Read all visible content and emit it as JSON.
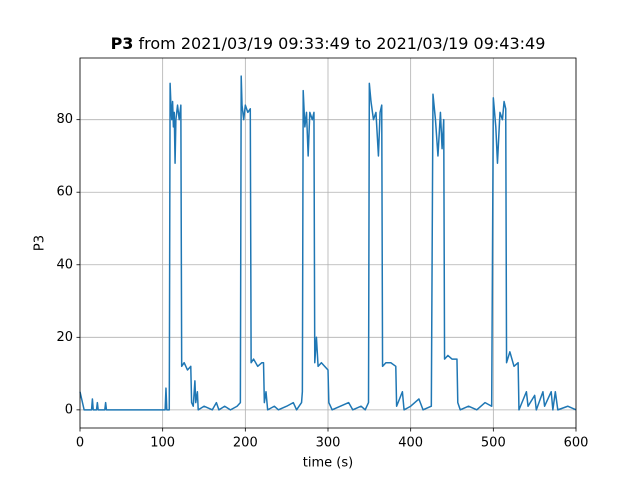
{
  "chart_data": {
    "type": "line",
    "title": {
      "bold": "P3",
      "text": "from 2021/03/19 09:33:49 to 2021/03/19 09:43:49"
    },
    "x_label": "time (s)",
    "y_label": "P3",
    "xlim": [
      0,
      600
    ],
    "ylim": [
      -5,
      97
    ],
    "xticks": [
      0,
      100,
      200,
      300,
      400,
      500,
      600
    ],
    "yticks": [
      0,
      20,
      40,
      60,
      80
    ],
    "grid": true,
    "series": [
      {
        "color": "#1f77b4",
        "x": [
          0,
          2,
          4,
          5,
          14,
          15,
          16,
          20,
          21,
          22,
          30,
          31,
          32,
          100,
          103,
          104,
          105,
          108,
          109,
          110,
          111,
          112,
          113,
          114,
          115,
          116,
          118,
          120,
          122,
          123,
          126,
          130,
          134,
          135,
          137,
          139,
          140,
          142,
          143,
          150,
          160,
          165,
          168,
          175,
          182,
          190,
          194,
          195,
          196,
          198,
          200,
          203,
          206,
          207,
          210,
          215,
          220,
          222,
          223,
          225,
          227,
          235,
          240,
          250,
          258,
          262,
          268,
          269,
          270,
          272,
          274,
          276,
          278,
          281,
          283,
          284,
          286,
          288,
          292,
          300,
          301,
          305,
          315,
          325,
          330,
          340,
          345,
          349,
          350,
          352,
          355,
          358,
          361,
          363,
          365,
          366,
          370,
          376,
          382,
          383,
          390,
          392,
          400,
          410,
          415,
          425,
          427,
          430,
          433,
          436,
          438,
          440,
          441,
          445,
          450,
          456,
          457,
          460,
          470,
          480,
          490,
          498,
          500,
          503,
          505,
          508,
          511,
          513,
          515,
          516,
          520,
          525,
          530,
          531,
          540,
          542,
          550,
          552,
          560,
          562,
          570,
          572,
          575,
          578,
          590,
          600
        ],
        "values": [
          5,
          3,
          1,
          0,
          0,
          3,
          0,
          0,
          2,
          0,
          0,
          2,
          0,
          0,
          0,
          6,
          0,
          0,
          90,
          84,
          80,
          85,
          78,
          82,
          68,
          80,
          84,
          80,
          84,
          12,
          13,
          11,
          12,
          2,
          1,
          8,
          2,
          5,
          0,
          1,
          0,
          2,
          0,
          1,
          0,
          1,
          2,
          92,
          84,
          80,
          84,
          82,
          83,
          13,
          14,
          12,
          13,
          13,
          2,
          5,
          0,
          1,
          0,
          1,
          2,
          0,
          2,
          5,
          88,
          78,
          82,
          70,
          82,
          80,
          82,
          13,
          20,
          12,
          13,
          11,
          2,
          0,
          1,
          2,
          0,
          1,
          0,
          2,
          90,
          85,
          80,
          82,
          70,
          82,
          84,
          12,
          13,
          13,
          12,
          1,
          5,
          0,
          1,
          3,
          0,
          1,
          87,
          80,
          70,
          82,
          72,
          80,
          14,
          15,
          14,
          14,
          2,
          0,
          1,
          0,
          2,
          1,
          86,
          78,
          68,
          82,
          80,
          85,
          83,
          13,
          16,
          12,
          13,
          0,
          5,
          1,
          4,
          0,
          5,
          1,
          5,
          0,
          5,
          0,
          1,
          0
        ]
      }
    ]
  }
}
